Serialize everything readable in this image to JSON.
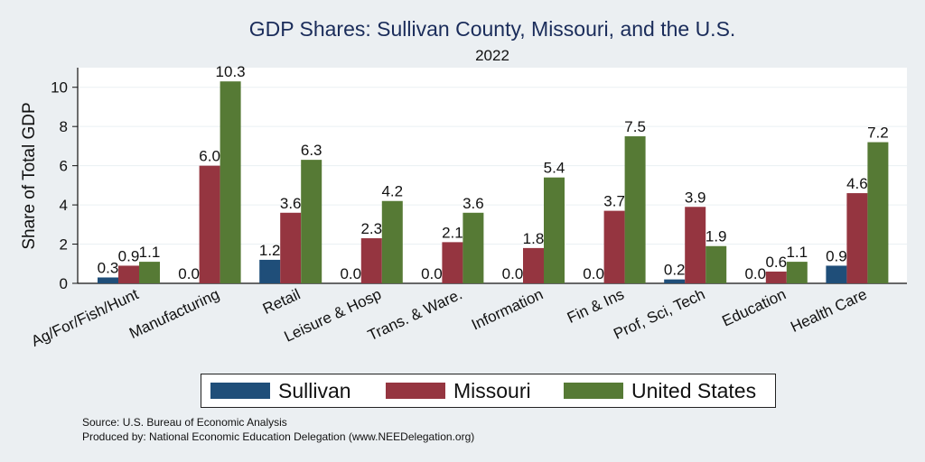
{
  "chart_data": {
    "type": "bar",
    "title": "GDP Shares: Sullivan County, Missouri, and the U.S.",
    "subtitle": "2022",
    "xlabel": "",
    "ylabel": "Share of Total GDP",
    "ylim": [
      0,
      11
    ],
    "yticks": [
      0,
      2,
      4,
      6,
      8,
      10
    ],
    "grid": true,
    "legend_position": "bottom",
    "categories": [
      "Ag/For/Fish/Hunt",
      "Manufacturing",
      "Retail",
      "Leisure & Hosp",
      "Trans. & Ware.",
      "Information",
      "Fin & Ins",
      "Prof, Sci, Tech",
      "Education",
      "Health Care"
    ],
    "series": [
      {
        "name": "Sullivan",
        "color": "#1f4e79",
        "values": [
          0.3,
          0.0,
          1.2,
          0.0,
          0.0,
          0.0,
          0.0,
          0.2,
          0.0,
          0.9
        ]
      },
      {
        "name": "Missouri",
        "color": "#953540",
        "values": [
          0.9,
          6.0,
          3.6,
          2.3,
          2.1,
          1.8,
          3.7,
          3.9,
          0.6,
          4.6
        ]
      },
      {
        "name": "United States",
        "color": "#567a35",
        "values": [
          1.1,
          10.3,
          6.3,
          4.2,
          3.6,
          5.4,
          7.5,
          1.9,
          1.1,
          7.2
        ]
      }
    ]
  },
  "source_line": "Source: U.S. Bureau of Economic Analysis",
  "produced_by_line": "Produced by: National Economic Education Delegation (www.NEEDelegation.org)"
}
